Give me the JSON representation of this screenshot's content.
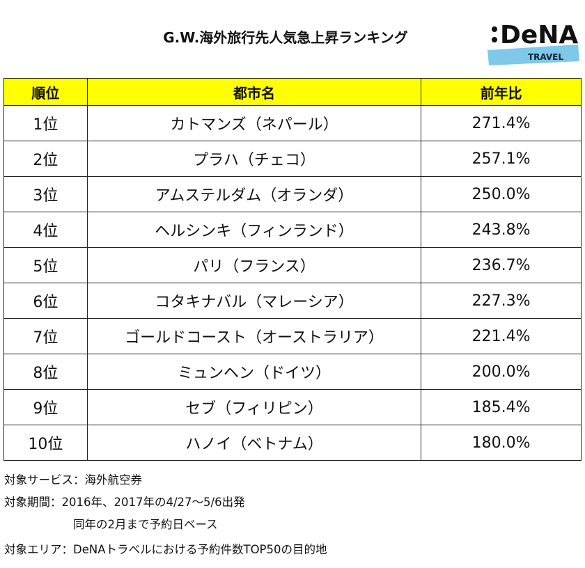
{
  "header": {
    "title": "G.W.海外旅行先人気急上昇ランキング"
  },
  "logo": {
    "brand": "DeNA",
    "sub": "TRAVEL"
  },
  "table": {
    "columns": [
      "順位",
      "都市名",
      "前年比"
    ],
    "rows": [
      [
        "1位",
        "カトマンズ（ネパール）",
        "271.4%"
      ],
      [
        "2位",
        "プラハ（チェコ）",
        "257.1%"
      ],
      [
        "3位",
        "アムステルダム（オランダ）",
        "250.0%"
      ],
      [
        "4位",
        "ヘルシンキ（フィンランド）",
        "243.8%"
      ],
      [
        "5位",
        "パリ（フランス）",
        "236.7%"
      ],
      [
        "6位",
        "コタキナバル（マレーシア）",
        "227.3%"
      ],
      [
        "7位",
        "ゴールドコースト（オーストラリア）",
        "221.4%"
      ],
      [
        "8位",
        "ミュンヘン（ドイツ）",
        "200.0%"
      ],
      [
        "9位",
        "セブ（フィリピン）",
        "185.4%"
      ],
      [
        "10位",
        "ハノイ（ベトナム）",
        "180.0%"
      ]
    ]
  },
  "notes": [
    "対象サービス：海外航空券",
    "対象期間：2016年、2017年の4/27～5/6出発",
    "同年の2月まで予約日ベース",
    "対象エリア：DeNAトラベルにおける予約件数TOP50の目的地"
  ]
}
